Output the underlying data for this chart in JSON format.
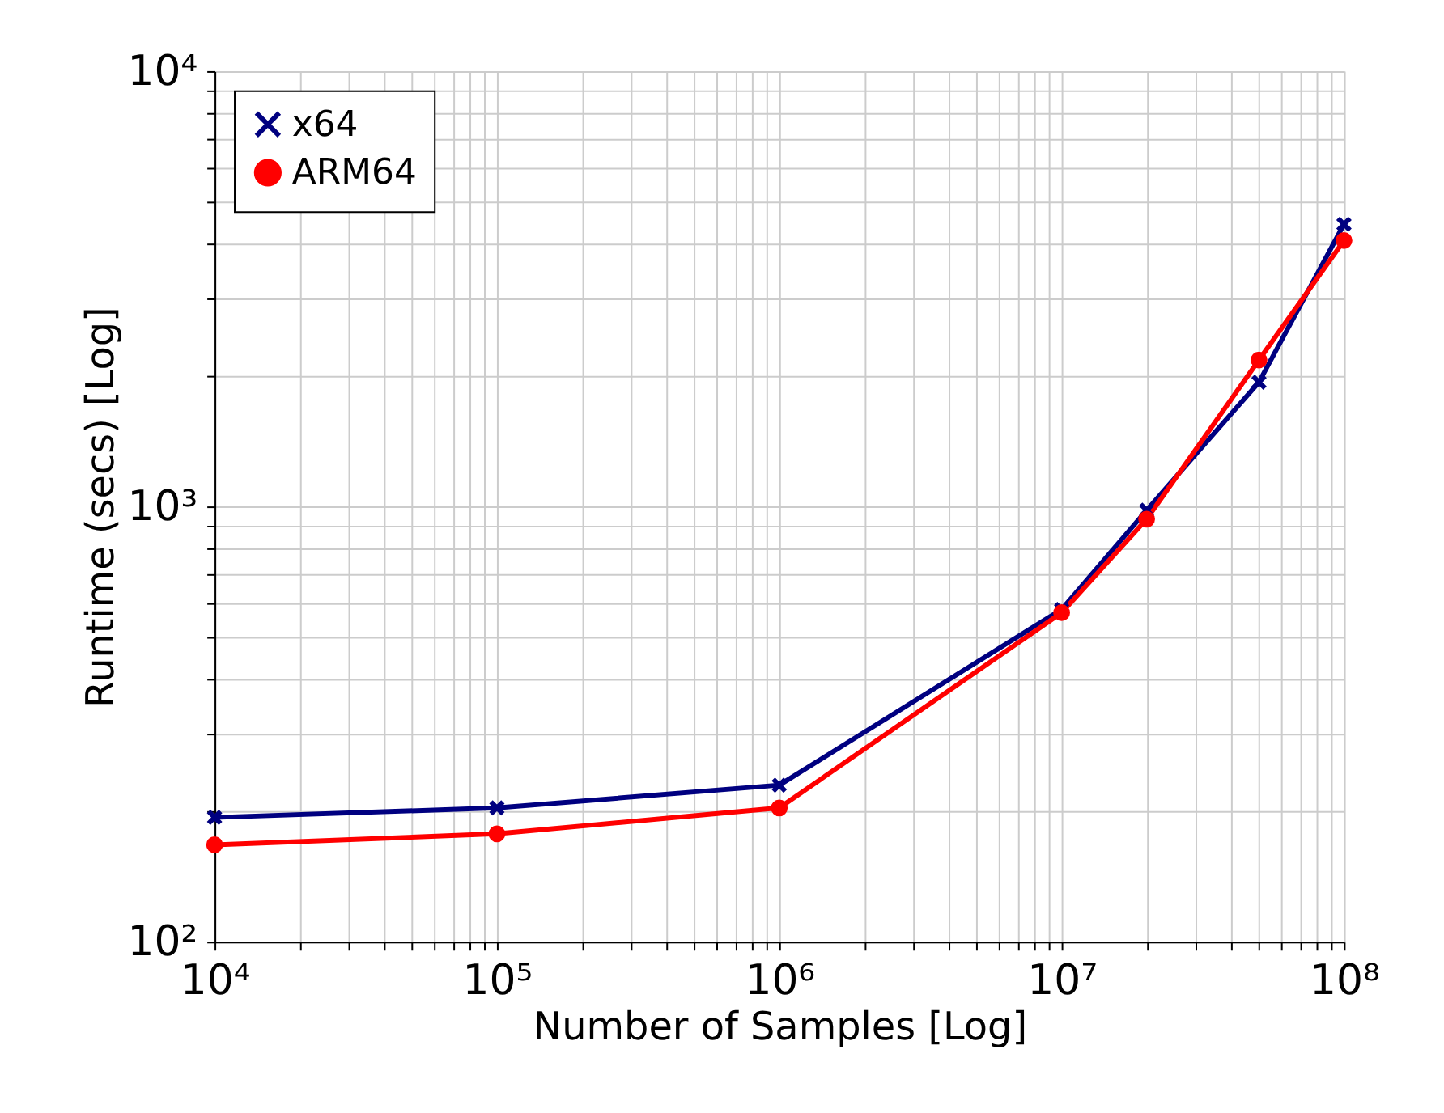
{
  "chart_data": {
    "type": "line",
    "xlabel": "Number of Samples [Log]",
    "ylabel": "Runtime (secs) [Log]",
    "x": [
      10000,
      100000,
      1000000,
      10000000,
      20000000,
      50000000,
      100000000
    ],
    "series": [
      {
        "name": "x64",
        "color": "#000080",
        "marker": "cross",
        "values": [
          193,
          203,
          229,
          580,
          980,
          1930,
          4450
        ]
      },
      {
        "name": "ARM64",
        "color": "#ff0000",
        "marker": "circle",
        "values": [
          167,
          177,
          203,
          570,
          935,
          2170,
          4080
        ]
      }
    ],
    "log": "xy",
    "xlim": [
      10000,
      100000000
    ],
    "ylim": [
      100,
      10000
    ],
    "xticks": [
      {
        "value": 10000,
        "label": "10⁴"
      },
      {
        "value": 20000,
        "label": null
      },
      {
        "value": 30000,
        "label": null
      },
      {
        "value": 40000,
        "label": null
      },
      {
        "value": 50000,
        "label": null
      },
      {
        "value": 60000,
        "label": null
      },
      {
        "value": 70000,
        "label": null
      },
      {
        "value": 80000,
        "label": null
      },
      {
        "value": 90000,
        "label": null
      },
      {
        "value": 100000,
        "label": "10⁵"
      },
      {
        "value": 200000,
        "label": null
      },
      {
        "value": 300000,
        "label": null
      },
      {
        "value": 400000,
        "label": null
      },
      {
        "value": 500000,
        "label": null
      },
      {
        "value": 600000,
        "label": null
      },
      {
        "value": 700000,
        "label": null
      },
      {
        "value": 800000,
        "label": null
      },
      {
        "value": 900000,
        "label": null
      },
      {
        "value": 1000000,
        "label": "10⁶"
      },
      {
        "value": 2000000,
        "label": null
      },
      {
        "value": 3000000,
        "label": null
      },
      {
        "value": 4000000,
        "label": null
      },
      {
        "value": 5000000,
        "label": null
      },
      {
        "value": 6000000,
        "label": null
      },
      {
        "value": 7000000,
        "label": null
      },
      {
        "value": 8000000,
        "label": null
      },
      {
        "value": 9000000,
        "label": null
      },
      {
        "value": 10000000,
        "label": "10⁷"
      },
      {
        "value": 20000000,
        "label": null
      },
      {
        "value": 30000000,
        "label": null
      },
      {
        "value": 40000000,
        "label": null
      },
      {
        "value": 50000000,
        "label": null
      },
      {
        "value": 60000000,
        "label": null
      },
      {
        "value": 70000000,
        "label": null
      },
      {
        "value": 80000000,
        "label": null
      },
      {
        "value": 90000000,
        "label": null
      },
      {
        "value": 100000000,
        "label": "10⁸"
      }
    ],
    "yticks": [
      {
        "value": 100,
        "label": "10²"
      },
      {
        "value": 200,
        "label": null
      },
      {
        "value": 300,
        "label": null
      },
      {
        "value": 400,
        "label": null
      },
      {
        "value": 500,
        "label": null
      },
      {
        "value": 600,
        "label": null
      },
      {
        "value": 700,
        "label": null
      },
      {
        "value": 800,
        "label": null
      },
      {
        "value": 900,
        "label": null
      },
      {
        "value": 1000,
        "label": "10³"
      },
      {
        "value": 2000,
        "label": null
      },
      {
        "value": 3000,
        "label": null
      },
      {
        "value": 4000,
        "label": null
      },
      {
        "value": 5000,
        "label": null
      },
      {
        "value": 6000,
        "label": null
      },
      {
        "value": 7000,
        "label": null
      },
      {
        "value": 8000,
        "label": null
      },
      {
        "value": 9000,
        "label": null
      },
      {
        "value": 10000,
        "label": "10⁴"
      }
    ],
    "grid": true,
    "legend": "top left",
    "line_style": "solid"
  }
}
